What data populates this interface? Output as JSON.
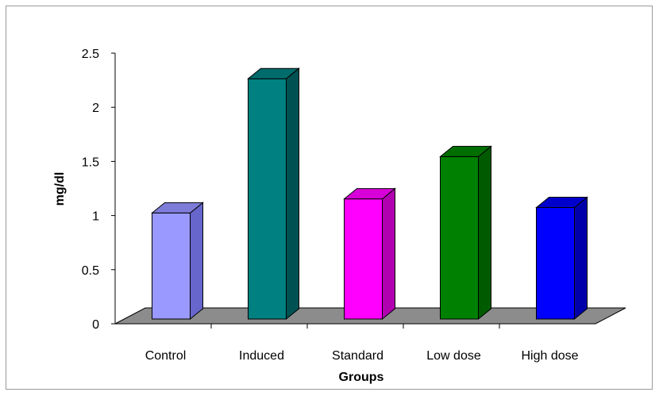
{
  "chart_data": {
    "type": "bar",
    "categories": [
      "Control",
      "Induced",
      "Standard",
      "Low dose",
      "High dose"
    ],
    "values": [
      0.98,
      2.22,
      1.11,
      1.5,
      1.03
    ],
    "colors": {
      "front": [
        "#9999ff",
        "#008080",
        "#ff00ff",
        "#008000",
        "#0000ff"
      ],
      "side": [
        "#6666cc",
        "#005252",
        "#b000b0",
        "#005a00",
        "#0000aa"
      ],
      "top": [
        "#7d7dd9",
        "#006b6b",
        "#d800d8",
        "#006e00",
        "#0000cc"
      ],
      "floor": "#8c8c8c"
    },
    "xlabel": "Groups",
    "ylabel": "mg/dl",
    "ylim": [
      0,
      2.5
    ],
    "yticks": [
      0,
      0.5,
      1,
      1.5,
      2,
      2.5
    ],
    "ytick_labels": [
      "0",
      "0.5",
      "1",
      "1.5",
      "2",
      "2.5"
    ],
    "grid": false,
    "legend": "none",
    "style": "3d-column"
  }
}
